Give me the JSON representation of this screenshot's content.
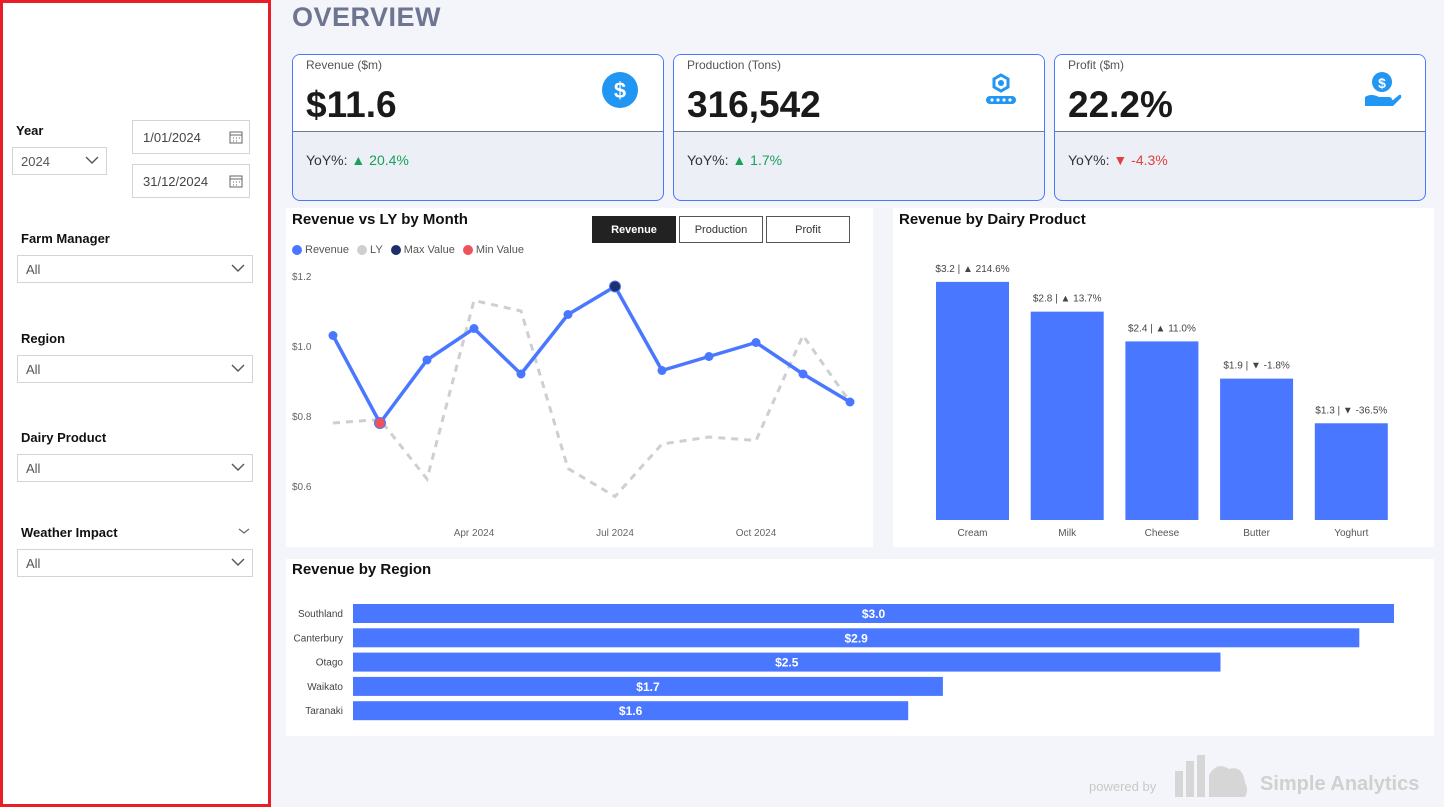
{
  "page": {
    "title": "OVERVIEW"
  },
  "filters": {
    "year": {
      "label": "Year",
      "value": "2024",
      "start_date": "1/01/2024",
      "end_date": "31/12/2024"
    },
    "farm_manager": {
      "label": "Farm Manager",
      "value": "All"
    },
    "region": {
      "label": "Region",
      "value": "All"
    },
    "dairy_product": {
      "label": "Dairy Product",
      "value": "All"
    },
    "weather_impact": {
      "label": "Weather Impact",
      "value": "All"
    }
  },
  "kpis": [
    {
      "label": "Revenue ($m)",
      "value": "$11.6",
      "yoy_label": "YoY%:",
      "yoy_value": "20.4%",
      "direction": "up",
      "icon": "dollar-circle-icon"
    },
    {
      "label": "Production (Tons)",
      "value": "316,542",
      "yoy_label": "YoY%:",
      "yoy_value": "1.7%",
      "direction": "up",
      "icon": "conveyor-icon"
    },
    {
      "label": "Profit ($m)",
      "value": "22.2%",
      "yoy_label": "YoY%:",
      "yoy_value": "-4.3%",
      "direction": "down",
      "icon": "hand-money-icon"
    }
  ],
  "colors": {
    "accent": "#4a77ff",
    "ly": "#cfcfcf",
    "max": "#1f2f6b",
    "min": "#f0525a",
    "up": "#1aa05a",
    "down": "#e14040"
  },
  "line_chart": {
    "title": "Revenue vs LY by Month",
    "tabs": [
      "Revenue",
      "Production",
      "Profit"
    ],
    "active_tab": "Revenue",
    "legend": [
      "Revenue",
      "LY",
      "Max Value",
      "Min Value"
    ]
  },
  "bar_chart": {
    "title": "Revenue by Dairy Product"
  },
  "region_chart": {
    "title": "Revenue by Region"
  },
  "footer": {
    "powered": "powered by",
    "brand": "Simple Analytics"
  },
  "chart_data": [
    {
      "type": "line",
      "title": "Revenue vs LY by Month",
      "x": [
        "Jan 2024",
        "Feb 2024",
        "Mar 2024",
        "Apr 2024",
        "May 2024",
        "Jun 2024",
        "Jul 2024",
        "Aug 2024",
        "Sep 2024",
        "Oct 2024",
        "Nov 2024",
        "Dec 2024"
      ],
      "xticks": [
        "Apr 2024",
        "Jul 2024",
        "Oct 2024"
      ],
      "series": [
        {
          "name": "Revenue",
          "values": [
            1.03,
            0.78,
            0.96,
            1.05,
            0.92,
            1.09,
            1.17,
            0.93,
            0.97,
            1.01,
            0.92,
            0.84
          ]
        },
        {
          "name": "LY",
          "values": [
            0.78,
            0.79,
            0.62,
            1.13,
            1.1,
            0.65,
            0.57,
            0.72,
            0.74,
            0.73,
            1.03,
            0.84
          ]
        }
      ],
      "max_index": 6,
      "min_index": 1,
      "yticks": [
        "$0.6",
        "$0.8",
        "$1.0",
        "$1.2"
      ],
      "ylim": [
        0.6,
        1.2
      ]
    },
    {
      "type": "bar",
      "title": "Revenue by Dairy Product",
      "categories": [
        "Cream",
        "Milk",
        "Cheese",
        "Butter",
        "Yoghurt"
      ],
      "values": [
        3.2,
        2.8,
        2.4,
        1.9,
        1.3
      ],
      "value_labels": [
        "$3.2",
        "$2.8",
        "$2.4",
        "$1.9",
        "$1.3"
      ],
      "yoy": [
        "214.6%",
        "13.7%",
        "11.0%",
        "-1.8%",
        "-36.5%"
      ],
      "yoy_dir": [
        "up",
        "up",
        "up",
        "down",
        "down"
      ],
      "ylim": [
        0,
        3.4
      ]
    },
    {
      "type": "bar",
      "orientation": "horizontal",
      "title": "Revenue by Region",
      "categories": [
        "Southland",
        "Canterbury",
        "Otago",
        "Waikato",
        "Taranaki"
      ],
      "values": [
        3.0,
        2.9,
        2.5,
        1.7,
        1.6
      ],
      "value_labels": [
        "$3.0",
        "$2.9",
        "$2.5",
        "$1.7",
        "$1.6"
      ],
      "xlim": [
        0,
        3.0
      ]
    }
  ]
}
